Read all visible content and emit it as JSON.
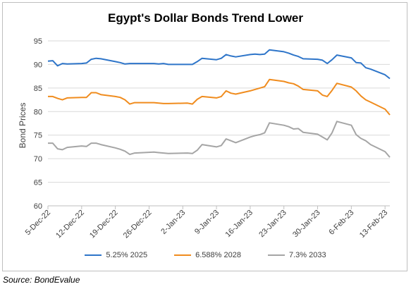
{
  "title": "Egypt's Dollar Bonds Trend Lower",
  "source": "Source: BondEvalue",
  "chart_data": {
    "type": "line",
    "title": "Egypt's Dollar Bonds Trend Lower",
    "xlabel": "",
    "ylabel": "Bond Prices",
    "ylim": [
      60,
      95
    ],
    "yticks": [
      60,
      65,
      70,
      75,
      80,
      85,
      90,
      95
    ],
    "xticks": [
      "5-Dec-22",
      "12-Dec-22",
      "19-Dec-22",
      "26-Dec-22",
      "2-Jan-23",
      "9-Jan-23",
      "16-Jan-23",
      "23-Jan-23",
      "30-Jan-23",
      "6-Feb-23",
      "13-Feb-23"
    ],
    "grid": true,
    "legend_position": "bottom",
    "x_start": "2022-12-05",
    "x_end": "2023-02-14",
    "series": [
      {
        "name": "5.25% 2025",
        "color": "#2e75c9",
        "points": [
          [
            "2022-12-05",
            90.7
          ],
          [
            "2022-12-06",
            90.8
          ],
          [
            "2022-12-07",
            89.7
          ],
          [
            "2022-12-08",
            90.2
          ],
          [
            "2022-12-09",
            90.1
          ],
          [
            "2022-12-12",
            90.2
          ],
          [
            "2022-12-13",
            90.3
          ],
          [
            "2022-12-14",
            91.1
          ],
          [
            "2022-12-15",
            91.3
          ],
          [
            "2022-12-16",
            91.2
          ],
          [
            "2022-12-19",
            90.6
          ],
          [
            "2022-12-20",
            90.4
          ],
          [
            "2022-12-21",
            90.1
          ],
          [
            "2022-12-22",
            90.2
          ],
          [
            "2022-12-23",
            90.2
          ],
          [
            "2022-12-27",
            90.2
          ],
          [
            "2022-12-28",
            90.1
          ],
          [
            "2022-12-29",
            90.2
          ],
          [
            "2022-12-30",
            90.0
          ],
          [
            "2023-01-03",
            90.0
          ],
          [
            "2023-01-04",
            90.0
          ],
          [
            "2023-01-05",
            90.6
          ],
          [
            "2023-01-06",
            91.3
          ],
          [
            "2023-01-09",
            91.0
          ],
          [
            "2023-01-10",
            91.3
          ],
          [
            "2023-01-11",
            92.1
          ],
          [
            "2023-01-12",
            91.8
          ],
          [
            "2023-01-13",
            91.6
          ],
          [
            "2023-01-16",
            92.1
          ],
          [
            "2023-01-17",
            92.2
          ],
          [
            "2023-01-18",
            92.1
          ],
          [
            "2023-01-19",
            92.2
          ],
          [
            "2023-01-20",
            93.1
          ],
          [
            "2023-01-23",
            92.7
          ],
          [
            "2023-01-24",
            92.4
          ],
          [
            "2023-01-25",
            92.0
          ],
          [
            "2023-01-26",
            91.7
          ],
          [
            "2023-01-27",
            91.2
          ],
          [
            "2023-01-30",
            91.1
          ],
          [
            "2023-01-31",
            90.9
          ],
          [
            "2023-02-01",
            90.2
          ],
          [
            "2023-02-02",
            91.0
          ],
          [
            "2023-02-03",
            92.0
          ],
          [
            "2023-02-06",
            91.4
          ],
          [
            "2023-02-07",
            90.4
          ],
          [
            "2023-02-08",
            90.3
          ],
          [
            "2023-02-09",
            89.3
          ],
          [
            "2023-02-10",
            89.0
          ],
          [
            "2023-02-13",
            87.8
          ],
          [
            "2023-02-14",
            87.0
          ]
        ]
      },
      {
        "name": "6.588% 2028",
        "color": "#f08c1e",
        "points": [
          [
            "2022-12-05",
            83.2
          ],
          [
            "2022-12-06",
            83.2
          ],
          [
            "2022-12-07",
            82.8
          ],
          [
            "2022-12-08",
            82.5
          ],
          [
            "2022-12-09",
            82.9
          ],
          [
            "2022-12-12",
            83.0
          ],
          [
            "2022-12-13",
            83.0
          ],
          [
            "2022-12-14",
            84.0
          ],
          [
            "2022-12-15",
            84.0
          ],
          [
            "2022-12-16",
            83.6
          ],
          [
            "2022-12-19",
            83.2
          ],
          [
            "2022-12-20",
            83.0
          ],
          [
            "2022-12-21",
            82.5
          ],
          [
            "2022-12-22",
            81.6
          ],
          [
            "2022-12-23",
            81.9
          ],
          [
            "2022-12-27",
            81.9
          ],
          [
            "2022-12-28",
            81.8
          ],
          [
            "2022-12-29",
            81.7
          ],
          [
            "2022-12-30",
            81.7
          ],
          [
            "2023-01-03",
            81.8
          ],
          [
            "2023-01-04",
            81.6
          ],
          [
            "2023-01-05",
            82.6
          ],
          [
            "2023-01-06",
            83.2
          ],
          [
            "2023-01-09",
            82.9
          ],
          [
            "2023-01-10",
            83.2
          ],
          [
            "2023-01-11",
            84.4
          ],
          [
            "2023-01-12",
            83.9
          ],
          [
            "2023-01-13",
            83.7
          ],
          [
            "2023-01-16",
            84.4
          ],
          [
            "2023-01-17",
            84.7
          ],
          [
            "2023-01-18",
            85.0
          ],
          [
            "2023-01-19",
            85.3
          ],
          [
            "2023-01-20",
            86.8
          ],
          [
            "2023-01-23",
            86.4
          ],
          [
            "2023-01-24",
            86.1
          ],
          [
            "2023-01-25",
            85.9
          ],
          [
            "2023-01-26",
            85.4
          ],
          [
            "2023-01-27",
            84.7
          ],
          [
            "2023-01-30",
            84.4
          ],
          [
            "2023-01-31",
            83.5
          ],
          [
            "2023-02-01",
            83.2
          ],
          [
            "2023-02-02",
            84.5
          ],
          [
            "2023-02-03",
            86.0
          ],
          [
            "2023-02-06",
            85.2
          ],
          [
            "2023-02-07",
            84.4
          ],
          [
            "2023-02-08",
            83.3
          ],
          [
            "2023-02-09",
            82.5
          ],
          [
            "2023-02-10",
            82.0
          ],
          [
            "2023-02-13",
            80.5
          ],
          [
            "2023-02-14",
            79.3
          ]
        ]
      },
      {
        "name": "7.3% 2033",
        "color": "#a5a5a5",
        "points": [
          [
            "2022-12-05",
            73.3
          ],
          [
            "2022-12-06",
            73.3
          ],
          [
            "2022-12-07",
            72.1
          ],
          [
            "2022-12-08",
            71.9
          ],
          [
            "2022-12-09",
            72.4
          ],
          [
            "2022-12-12",
            72.7
          ],
          [
            "2022-12-13",
            72.6
          ],
          [
            "2022-12-14",
            73.3
          ],
          [
            "2022-12-15",
            73.3
          ],
          [
            "2022-12-16",
            73.0
          ],
          [
            "2022-12-19",
            72.3
          ],
          [
            "2022-12-20",
            72.0
          ],
          [
            "2022-12-21",
            71.6
          ],
          [
            "2022-12-22",
            70.9
          ],
          [
            "2022-12-23",
            71.2
          ],
          [
            "2022-12-27",
            71.4
          ],
          [
            "2022-12-28",
            71.3
          ],
          [
            "2022-12-29",
            71.2
          ],
          [
            "2022-12-30",
            71.1
          ],
          [
            "2023-01-03",
            71.2
          ],
          [
            "2023-01-04",
            71.1
          ],
          [
            "2023-01-05",
            71.8
          ],
          [
            "2023-01-06",
            73.0
          ],
          [
            "2023-01-09",
            72.5
          ],
          [
            "2023-01-10",
            72.8
          ],
          [
            "2023-01-11",
            74.2
          ],
          [
            "2023-01-12",
            73.8
          ],
          [
            "2023-01-13",
            73.4
          ],
          [
            "2023-01-16",
            74.6
          ],
          [
            "2023-01-17",
            74.9
          ],
          [
            "2023-01-18",
            75.1
          ],
          [
            "2023-01-19",
            75.5
          ],
          [
            "2023-01-20",
            77.6
          ],
          [
            "2023-01-23",
            77.1
          ],
          [
            "2023-01-24",
            76.8
          ],
          [
            "2023-01-25",
            76.3
          ],
          [
            "2023-01-26",
            76.4
          ],
          [
            "2023-01-27",
            75.6
          ],
          [
            "2023-01-30",
            75.2
          ],
          [
            "2023-01-31",
            74.6
          ],
          [
            "2023-02-01",
            74.0
          ],
          [
            "2023-02-02",
            75.5
          ],
          [
            "2023-02-03",
            77.9
          ],
          [
            "2023-02-06",
            77.1
          ],
          [
            "2023-02-07",
            75.1
          ],
          [
            "2023-02-08",
            74.3
          ],
          [
            "2023-02-09",
            73.8
          ],
          [
            "2023-02-10",
            73.0
          ],
          [
            "2023-02-13",
            71.5
          ],
          [
            "2023-02-14",
            70.3
          ]
        ]
      }
    ]
  }
}
